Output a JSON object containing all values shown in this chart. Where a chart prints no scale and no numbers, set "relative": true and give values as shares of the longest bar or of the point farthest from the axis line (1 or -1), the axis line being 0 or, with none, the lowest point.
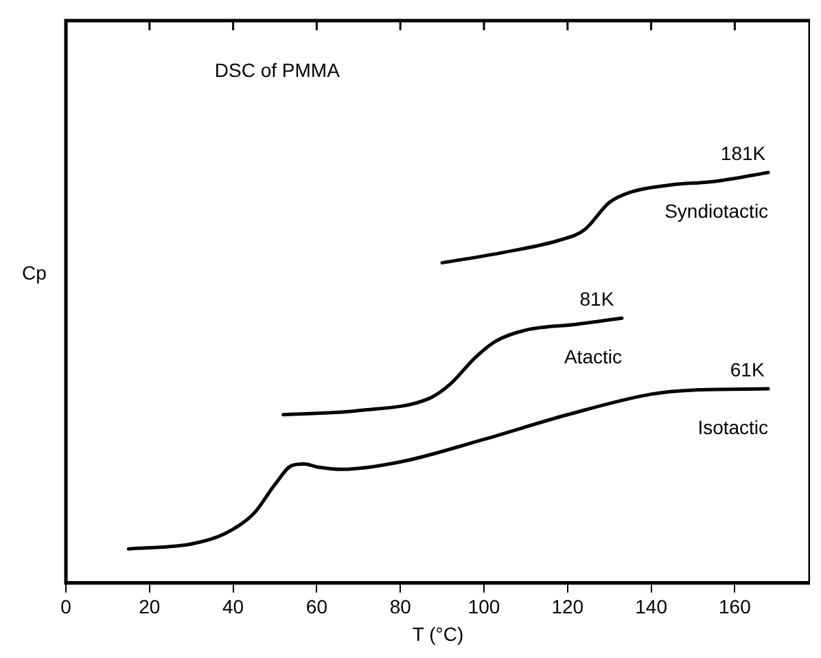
{
  "chart_data": {
    "type": "line",
    "title": "DSC of PMMA",
    "xlabel": "T (°C)",
    "ylabel": "Cp",
    "relative": true,
    "xlim": [
      0,
      178
    ],
    "xticks": [
      0,
      20,
      40,
      60,
      80,
      100,
      120,
      140,
      160
    ],
    "grid": false,
    "legend": false,
    "marker": "none",
    "line_style": "solid",
    "series": [
      {
        "name": "Syndiotactic",
        "color": "#000000",
        "x": [
          90,
          105,
          118,
          124,
          130,
          135,
          145,
          155,
          168
        ],
        "values": [
          0.78,
          0.806,
          0.835,
          0.86,
          0.927,
          0.952,
          0.97,
          0.978,
          1
        ]
      },
      {
        "name": "Atactic",
        "color": "#000000",
        "x": [
          52,
          70,
          87,
          92,
          98,
          103,
          110,
          122,
          133
        ],
        "values": [
          0.41,
          0.42,
          0.45,
          0.485,
          0.55,
          0.59,
          0.616,
          0.63,
          0.645
        ]
      },
      {
        "name": "Isotactic",
        "color": "#000000",
        "x": [
          15,
          30,
          38,
          45,
          50,
          54,
          57,
          60,
          66,
          80,
          100,
          120,
          140,
          150,
          168
        ],
        "values": [
          0.083,
          0.095,
          0.12,
          0.17,
          0.24,
          0.286,
          0.29,
          0.283,
          0.277,
          0.295,
          0.35,
          0.41,
          0.46,
          0.47,
          0.473
        ]
      }
    ],
    "annotations": [
      {
        "text": "181K",
        "x": 162,
        "y": 1
      },
      {
        "text": "81K",
        "x": 127,
        "y": 0.645
      },
      {
        "text": "61K",
        "x": 163,
        "y": 0.473
      }
    ]
  }
}
